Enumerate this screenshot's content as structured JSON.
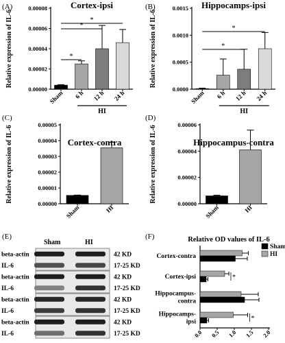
{
  "panel_labels": [
    "(A)",
    "(B)",
    "(C)",
    "(D)",
    "(E)",
    "(F)"
  ],
  "chart_data": [
    {
      "type": "bar",
      "panel": "(A)",
      "title": "Cortex-ipsi",
      "ylabel": "Relative expression of IL-6",
      "categories": [
        "Sham",
        "6 h",
        "12 h",
        "24 h"
      ],
      "group_label": "HI",
      "values": [
        4e-06,
        2.5e-05,
        4e-05,
        4.6e-05
      ],
      "errors": [
        5e-07,
        3e-06,
        2.3e-05,
        1.3e-05
      ],
      "colors": [
        "#000000",
        "#a6a6a6",
        "#7d7d7d",
        "#d9d9d9"
      ],
      "ylim": [
        0,
        8e-05
      ],
      "yticks": [
        "0.00000",
        "0.00002",
        "0.00004",
        "0.00006",
        "0.00008"
      ],
      "significance": [
        {
          "from": "Sham",
          "to": "6 h",
          "label": "*"
        },
        {
          "from": "Sham",
          "to": "12 h",
          "label": "*"
        },
        {
          "from": "Sham",
          "to": "24 h",
          "label": "*"
        }
      ]
    },
    {
      "type": "bar",
      "panel": "(B)",
      "title": "Hippocamps-ipsi",
      "ylabel": "Relative expression of IL-6",
      "categories": [
        "Sham",
        "6 h",
        "12 h",
        "24 h"
      ],
      "group_label": "HI",
      "values": [
        1e-05,
        0.00026,
        0.00037,
        0.00075
      ],
      "errors": [
        1e-05,
        0.0003,
        0.00037,
        0.0003
      ],
      "colors": [
        "#000000",
        "#a6a6a6",
        "#7d7d7d",
        "#d9d9d9"
      ],
      "ylim": [
        0,
        0.0015
      ],
      "yticks": [
        "0.0000",
        "0.0005",
        "0.0010",
        "0.0015"
      ],
      "significance": [
        {
          "from": "Sham",
          "to": "12 h",
          "label": "*"
        },
        {
          "from": "Sham",
          "to": "24 h",
          "label": "*"
        }
      ]
    },
    {
      "type": "bar",
      "panel": "(C)",
      "title": "Cortex-contra",
      "ylabel": "Relative expression of IL-6",
      "categories": [
        "Sham",
        "HI"
      ],
      "values": [
        5.3e-06,
        3.55e-05
      ],
      "errors": [
        2e-07,
        3.5e-06
      ],
      "colors": [
        "#000000",
        "#a6a6a6"
      ],
      "ylim": [
        0,
        5e-05
      ],
      "yticks": [
        "0.00000",
        "0.00001",
        "0.00002",
        "0.00003",
        "0.00004",
        "0.00005"
      ]
    },
    {
      "type": "bar",
      "panel": "(D)",
      "title": "Hippocampus-contra",
      "ylabel": "Relative expression of IL-6",
      "categories": [
        "Sham",
        "HI"
      ],
      "values": [
        6e-06,
        4.1e-05
      ],
      "errors": [
        5e-07,
        1.5e-05
      ],
      "colors": [
        "#000000",
        "#a6a6a6"
      ],
      "ylim": [
        0,
        6e-05
      ],
      "yticks": [
        "0.00000",
        "0.00002",
        "0.00004",
        "0.00006"
      ]
    },
    {
      "type": "bar",
      "orientation": "horizontal",
      "panel": "(F)",
      "title": "Relative OD values of IL-6",
      "categories": [
        "Cortex-contra",
        "Cortex-ipsi",
        "Hippocampus-contra",
        "Hippocamps-ipsi"
      ],
      "category_lines": [
        [
          "Cortex-contra"
        ],
        [
          "Cortex-ipsi"
        ],
        [
          "Hippocampus-",
          "contra"
        ],
        [
          "Hippocamps-",
          "ipsi"
        ]
      ],
      "series": [
        {
          "name": "HI",
          "color": "#a6a6a6",
          "values": [
            1.23,
            0.72,
            1.2,
            0.97
          ],
          "errors": [
            0.18,
            0.12,
            0.5,
            0.42
          ]
        },
        {
          "name": "Sham",
          "color": "#000000",
          "values": [
            1.03,
            0.18,
            1.3,
            0.2
          ],
          "errors": [
            0.35,
            0.05,
            0.42,
            0.05
          ]
        }
      ],
      "legend_order": [
        "Sham",
        "HI"
      ],
      "legend": "top-right",
      "xlim": [
        0,
        2.0
      ],
      "xticks": [
        "0.0",
        "0.5",
        "1.0",
        "1.5",
        "2.0"
      ],
      "significance": [
        {
          "category": "Cortex-ipsi",
          "label": "*"
        },
        {
          "category": "Hippocamps-ipsi",
          "label": "*"
        }
      ]
    }
  ],
  "blot": {
    "panel": "(E)",
    "columns": [
      "Sham",
      "HI"
    ],
    "rows": [
      {
        "label": "beta-actin",
        "kd": "42 KD",
        "intensity": [
          0.95,
          0.95
        ]
      },
      {
        "label": "IL-6",
        "kd": "17-25 KD",
        "intensity": [
          0.7,
          0.75
        ]
      },
      {
        "label": "beta-actin",
        "kd": "42 KD",
        "intensity": [
          0.95,
          0.95
        ]
      },
      {
        "label": "IL-6",
        "kd": "17-25 KD",
        "intensity": [
          0.45,
          0.85
        ]
      },
      {
        "label": "beta-actin",
        "kd": "42 KD",
        "intensity": [
          0.9,
          0.9
        ]
      },
      {
        "label": "IL-6",
        "kd": "17-25 KD",
        "intensity": [
          0.8,
          0.85
        ]
      },
      {
        "label": "beta-actin",
        "kd": "42 KD",
        "intensity": [
          0.95,
          0.95
        ]
      },
      {
        "label": "IL-6",
        "kd": "17-25 KD",
        "intensity": [
          0.55,
          0.85
        ]
      }
    ]
  }
}
